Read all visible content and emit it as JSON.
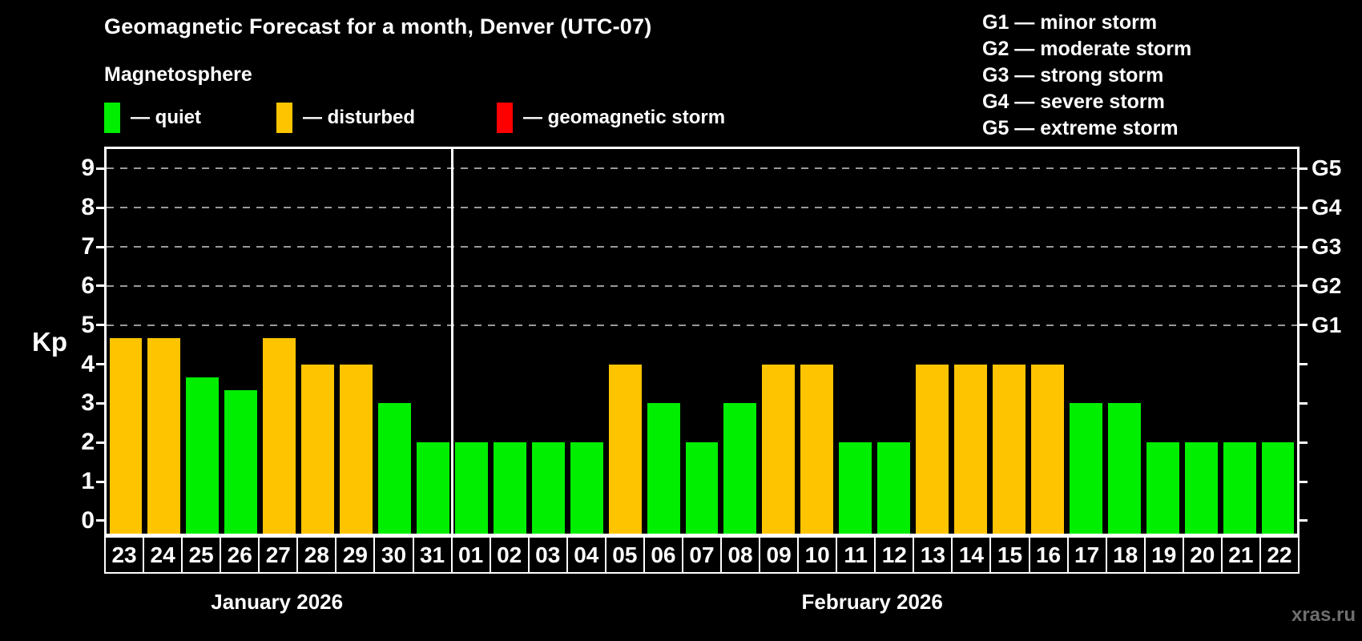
{
  "header": {
    "title": "Geomagnetic Forecast for a month, Denver (UTC-07)",
    "subtitle": "Magnetosphere"
  },
  "legend": {
    "items": [
      {
        "status": "quiet",
        "label": "— quiet",
        "color": "#00EE00"
      },
      {
        "status": "disturbed",
        "label": "— disturbed",
        "color": "#FFC400"
      },
      {
        "status": "storm",
        "label": "— geomagnetic storm",
        "color": "#FF0000"
      }
    ]
  },
  "g_scale_legend": {
    "items": [
      "G1 — minor storm",
      "G2 — moderate storm",
      "G3 — strong storm",
      "G4 — severe storm",
      "G5 — extreme storm"
    ]
  },
  "watermark": "xras.ru",
  "chart_data": {
    "type": "bar",
    "title": "Geomagnetic Forecast for a month, Denver (UTC-07)",
    "subtitle": "Magnetosphere",
    "xlabel": "",
    "ylabel": "Kp",
    "ylim": [
      -0.33,
      9.5
    ],
    "yticks": [
      0,
      1,
      2,
      3,
      4,
      5,
      6,
      7,
      8,
      9
    ],
    "grid": "dashed horizontal at Kp 5-9 only",
    "gridlines_at_kp": [
      5,
      6,
      7,
      8,
      9
    ],
    "right_axis": {
      "labels": [
        "G1",
        "G2",
        "G3",
        "G4",
        "G5"
      ],
      "at_kp": [
        5,
        6,
        7,
        8,
        9
      ]
    },
    "legend_position": "top-left",
    "status_colors": {
      "quiet": "#00EE00",
      "disturbed": "#FFC400",
      "storm": "#FF0000"
    },
    "groups": [
      {
        "label": "January 2026",
        "days": [
          "23",
          "24",
          "25",
          "26",
          "27",
          "28",
          "29",
          "30",
          "31"
        ],
        "values": [
          4.67,
          4.67,
          3.67,
          3.33,
          4.67,
          4,
          4,
          3,
          2
        ],
        "statuses": [
          "disturbed",
          "disturbed",
          "quiet",
          "quiet",
          "disturbed",
          "disturbed",
          "disturbed",
          "quiet",
          "quiet"
        ]
      },
      {
        "label": "February 2026",
        "days": [
          "01",
          "02",
          "03",
          "04",
          "05",
          "06",
          "07",
          "08",
          "09",
          "10",
          "11",
          "12",
          "13",
          "14",
          "15",
          "16",
          "17",
          "18",
          "19",
          "20",
          "21",
          "22"
        ],
        "values": [
          2,
          2,
          2,
          2,
          4,
          3,
          2,
          3,
          4,
          4,
          2,
          2,
          4,
          4,
          4,
          4,
          3,
          3,
          2,
          2,
          2,
          2
        ],
        "statuses": [
          "quiet",
          "quiet",
          "quiet",
          "quiet",
          "disturbed",
          "quiet",
          "quiet",
          "quiet",
          "disturbed",
          "disturbed",
          "quiet",
          "quiet",
          "disturbed",
          "disturbed",
          "disturbed",
          "disturbed",
          "quiet",
          "quiet",
          "quiet",
          "quiet",
          "quiet",
          "quiet"
        ]
      }
    ]
  }
}
